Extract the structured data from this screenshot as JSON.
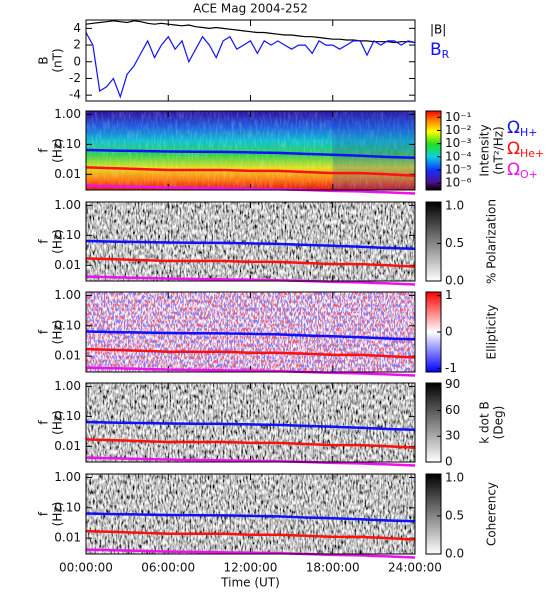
{
  "chart_data": [
    {
      "type": "line",
      "title": "ACE Mag 2004-252",
      "ylabel": [
        "B",
        "(nT)"
      ],
      "ylim": [
        -4.7,
        5
      ],
      "yticks": [
        -4,
        -2,
        0,
        2,
        4
      ],
      "xlim": [
        0,
        24
      ],
      "x": [
        0,
        0.5,
        1,
        1.5,
        2,
        2.5,
        3,
        3.5,
        4,
        4.5,
        5,
        5.5,
        6,
        6.5,
        7,
        7.5,
        8,
        8.5,
        9,
        9.5,
        10,
        10.5,
        11,
        11.5,
        12,
        12.5,
        13,
        13.5,
        14,
        14.5,
        15,
        15.5,
        16,
        16.5,
        17,
        17.5,
        18,
        18.5,
        19,
        19.5,
        20,
        20.5,
        21,
        21.5,
        22,
        22.5,
        23,
        23.5,
        24
      ],
      "series": [
        {
          "name": "|B|",
          "color": "#000000",
          "values": [
            4.5,
            4.6,
            4.7,
            4.8,
            4.9,
            4.8,
            4.7,
            4.9,
            4.8,
            4.6,
            4.5,
            4.6,
            4.5,
            4.4,
            4.3,
            4.4,
            4.2,
            4.1,
            4.0,
            4.1,
            4.0,
            3.9,
            3.8,
            3.7,
            3.6,
            3.5,
            3.5,
            3.4,
            3.3,
            3.2,
            3.2,
            3.1,
            3.0,
            3.0,
            2.9,
            2.8,
            2.7,
            2.7,
            2.6,
            2.6,
            2.5,
            2.5,
            2.4,
            2.4,
            2.4,
            2.3,
            2.4,
            2.4,
            2.3
          ]
        },
        {
          "name": "BR",
          "color": "#1010ff",
          "values": [
            3.5,
            2.0,
            -3.5,
            -3.0,
            -2.0,
            -4.2,
            -1.5,
            -0.5,
            1.0,
            2.5,
            0.5,
            2.0,
            3.0,
            1.5,
            2.5,
            0.0,
            1.5,
            3.0,
            2.0,
            0.5,
            2.5,
            3.0,
            1.5,
            2.0,
            2.5,
            1.0,
            2.5,
            2.0,
            2.5,
            2.0,
            1.5,
            2.0,
            2.0,
            1.0,
            2.5,
            2.0,
            2.0,
            1.5,
            2.0,
            2.5,
            2.5,
            0.8,
            2.5,
            2.0,
            2.5,
            2.5,
            2.0,
            2.5,
            2.3
          ]
        }
      ]
    },
    {
      "type": "spectrogram",
      "ylabel": [
        "f",
        "(Hz)"
      ],
      "log_scale": true,
      "ylim": [
        0.003,
        1.3
      ],
      "yticks": [
        {
          "value": 0.01,
          "label": "0.01"
        },
        {
          "value": 0.1,
          "label": "0.10"
        },
        {
          "value": 1,
          "label": "1.00"
        }
      ],
      "xlim": [
        0,
        24
      ],
      "x": [
        0,
        2,
        4,
        6,
        8,
        10,
        12,
        14,
        16,
        18,
        20,
        22,
        24
      ],
      "series": [
        {
          "name": "ΩH+",
          "color": "#1010ff",
          "values": [
            0.065,
            0.062,
            0.06,
            0.058,
            0.057,
            0.056,
            0.054,
            0.052,
            0.048,
            0.045,
            0.042,
            0.038,
            0.036
          ]
        },
        {
          "name": "ΩHe+",
          "color": "#ff1010",
          "values": [
            0.017,
            0.016,
            0.015,
            0.014,
            0.014,
            0.014,
            0.013,
            0.013,
            0.012,
            0.011,
            0.011,
            0.01,
            0.009
          ]
        },
        {
          "name": "ΩO+",
          "color": "#ee10ee",
          "values": [
            0.0042,
            0.004,
            0.0038,
            0.0036,
            0.0035,
            0.0034,
            0.0033,
            0.0032,
            0.003,
            0.0028,
            0.0027,
            0.0025,
            0.0023
          ]
        }
      ],
      "colorbar": {
        "colormap": "rainbow",
        "scale": "log",
        "range": [
          3e-07,
          0.3
        ],
        "label": [
          "Intensity",
          "(nT²/Hz)"
        ],
        "ticks": [
          {
            "value": 0.1,
            "label": "10⁻¹"
          },
          {
            "value": 0.01,
            "label": "10⁻²"
          },
          {
            "value": 0.001,
            "label": "10⁻³"
          },
          {
            "value": 0.0001,
            "label": "10⁻⁴"
          },
          {
            "value": 1e-05,
            "label": "10⁻⁵"
          },
          {
            "value": 1e-06,
            "label": "10⁻⁶"
          }
        ]
      }
    },
    {
      "type": "spectrogram",
      "ylabel": [
        "f",
        "(Hz)"
      ],
      "log_scale": true,
      "ylim": [
        0.003,
        1.3
      ],
      "yticks": [
        {
          "value": 0.01,
          "label": "0.01"
        },
        {
          "value": 0.1,
          "label": "0.10"
        },
        {
          "value": 1,
          "label": "1.00"
        }
      ],
      "xlim": [
        0,
        24
      ],
      "colorbar": {
        "colormap": "gray",
        "scale": "linear",
        "range": [
          0,
          1.05
        ],
        "label": [
          "% Polarization"
        ],
        "ticks": [
          {
            "value": 0,
            "label": "0.0"
          },
          {
            "value": 0.5,
            "label": "0.5"
          },
          {
            "value": 1,
            "label": "1.0"
          }
        ]
      }
    },
    {
      "type": "spectrogram",
      "ylabel": [
        "f",
        "(Hz)"
      ],
      "log_scale": true,
      "ylim": [
        0.003,
        1.3
      ],
      "yticks": [
        {
          "value": 0.01,
          "label": "0.01"
        },
        {
          "value": 0.1,
          "label": "0.10"
        },
        {
          "value": 1,
          "label": "1.00"
        }
      ],
      "xlim": [
        0,
        24
      ],
      "colorbar": {
        "colormap": "bwr",
        "scale": "linear",
        "range": [
          -1.1,
          1.1
        ],
        "label": [
          "Ellipticity"
        ],
        "ticks": [
          -1,
          0,
          1
        ]
      }
    },
    {
      "type": "spectrogram",
      "ylabel": [
        "f",
        "(Hz)"
      ],
      "log_scale": true,
      "ylim": [
        0.003,
        1.3
      ],
      "yticks": [
        {
          "value": 0.01,
          "label": "0.01"
        },
        {
          "value": 0.1,
          "label": "0.10"
        },
        {
          "value": 1,
          "label": "1.00"
        }
      ],
      "xlim": [
        0,
        24
      ],
      "colorbar": {
        "colormap": "gray",
        "scale": "linear",
        "range": [
          0,
          92
        ],
        "label": [
          "k dot B",
          "(Deg)"
        ],
        "ticks": [
          0,
          30,
          60,
          90
        ]
      }
    },
    {
      "type": "spectrogram",
      "ylabel": [
        "f",
        "(Hz)"
      ],
      "log_scale": true,
      "ylim": [
        0.003,
        1.3
      ],
      "yticks": [
        {
          "value": 0.01,
          "label": "0.01"
        },
        {
          "value": 0.1,
          "label": "0.10"
        },
        {
          "value": 1,
          "label": "1.00"
        }
      ],
      "xlim": [
        0,
        24
      ],
      "xlabel": "Time (UT)",
      "xticks": [
        {
          "value": 0,
          "label": "00:00:00"
        },
        {
          "value": 6,
          "label": "06:00:00"
        },
        {
          "value": 12,
          "label": "12:00:00"
        },
        {
          "value": 18,
          "label": "18:00:00"
        },
        {
          "value": 24,
          "label": "24:00:00"
        }
      ],
      "colorbar": {
        "colormap": "gray",
        "scale": "linear",
        "range": [
          0,
          1.05
        ],
        "label": [
          "Coherency"
        ],
        "ticks": [
          {
            "value": 0,
            "label": "0.0"
          },
          {
            "value": 0.5,
            "label": "0.5"
          },
          {
            "value": 1,
            "label": "1.0"
          }
        ]
      }
    }
  ]
}
